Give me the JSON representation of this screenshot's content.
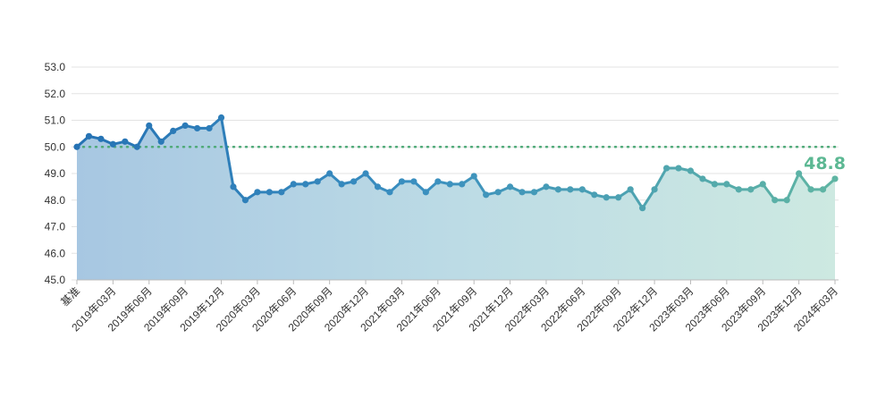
{
  "chart_data": {
    "type": "area",
    "title": "",
    "xlabel": "",
    "ylabel": "",
    "ylim": [
      45,
      53
    ],
    "y_ticks": [
      "45.0",
      "46.0",
      "47.0",
      "48.0",
      "49.0",
      "50.0",
      "51.0",
      "52.0",
      "53.0"
    ],
    "x_tick_labels": [
      "基准",
      "2019年03月",
      "2019年06月",
      "2019年09月",
      "2019年12月",
      "2020年03月",
      "2020年06月",
      "2020年09月",
      "2020年12月",
      "2021年03月",
      "2021年06月",
      "2021年09月",
      "2021年12月",
      "2022年03月",
      "2022年06月",
      "2022年09月",
      "2022年12月",
      "2023年03月",
      "2023年06月",
      "2023年09月",
      "2023年12月",
      "2024年03月"
    ],
    "reference_line": 50.0,
    "grid": true,
    "last_value_label": "48.8",
    "series": [
      {
        "values": [
          50.0,
          50.4,
          50.3,
          50.1,
          50.2,
          50.0,
          50.8,
          50.2,
          50.6,
          50.8,
          50.7,
          50.7,
          51.1,
          48.5,
          48.0,
          48.3,
          48.3,
          48.3,
          48.6,
          48.6,
          48.7,
          49.0,
          48.6,
          48.7,
          49.0,
          48.5,
          48.3,
          48.7,
          48.7,
          48.3,
          48.7,
          48.6,
          48.6,
          48.9,
          48.2,
          48.3,
          48.5,
          48.3,
          48.3,
          48.5,
          48.4,
          48.4,
          48.4,
          48.2,
          48.1,
          48.1,
          48.4,
          47.7,
          48.4,
          49.2,
          49.2,
          49.1,
          48.8,
          48.6,
          48.6,
          48.4,
          48.4,
          48.6,
          48.0,
          48.0,
          49.0,
          48.4,
          48.4,
          48.8
        ]
      }
    ]
  },
  "colors": {
    "line_start": "#2572b4",
    "line_end": "#5fb5a3",
    "area_start": "#a7c7e2",
    "area_end": "#cde9e1",
    "reference_line": "#4faa78",
    "label": "#5cb893",
    "grid": "#e3e3e3",
    "axis": "#bbbbbb"
  }
}
